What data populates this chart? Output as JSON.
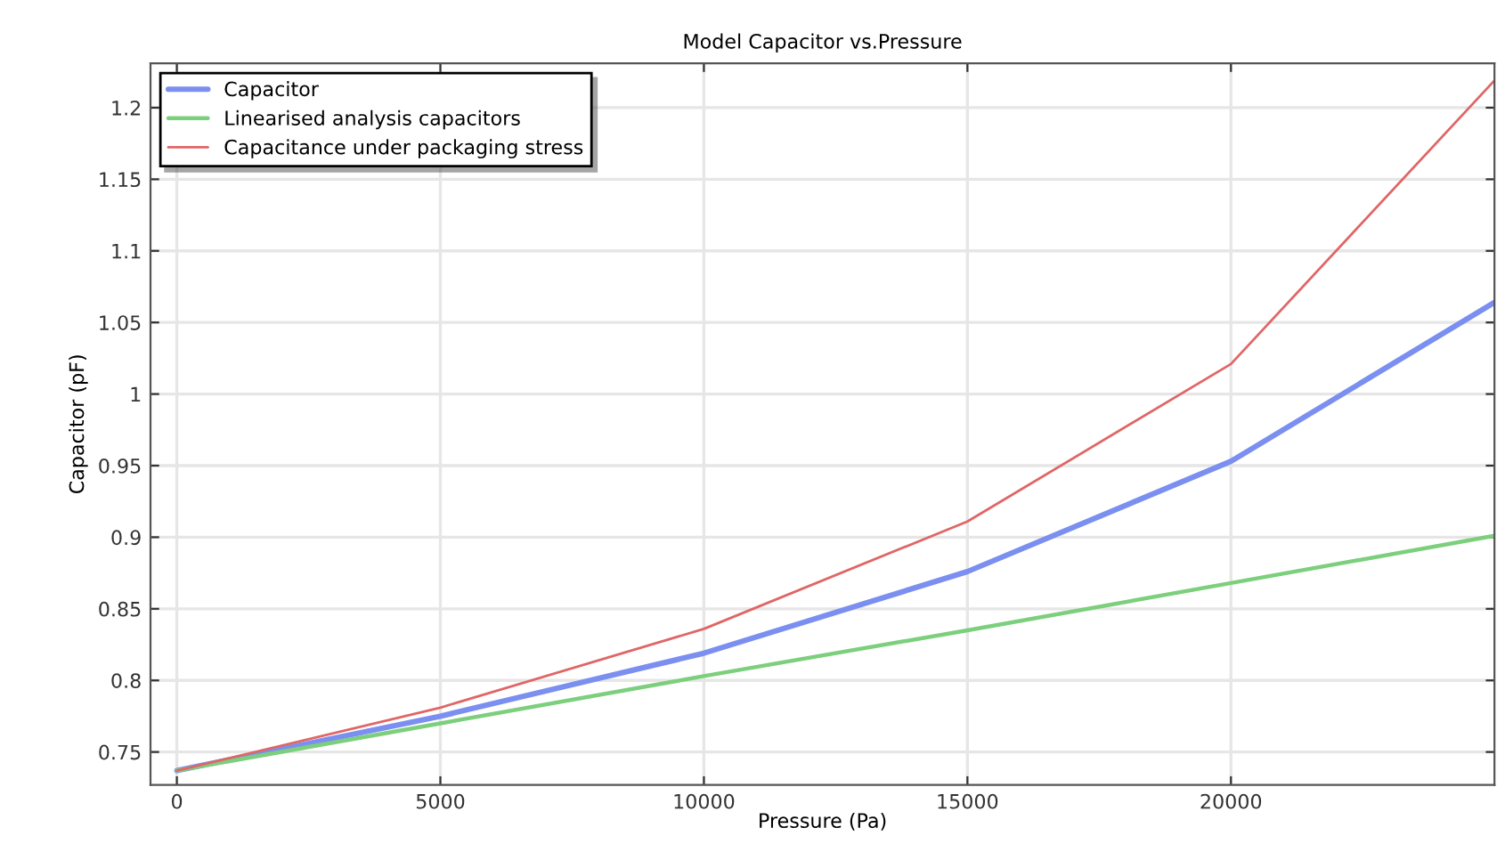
{
  "chart_data": {
    "type": "line",
    "title": "Model Capacitor vs.Pressure",
    "xlabel": "Pressure (Pa)",
    "ylabel": "Capacitor (pF)",
    "x": [
      0,
      5000,
      10000,
      15000,
      20000,
      25000
    ],
    "series": [
      {
        "name": "Capacitor",
        "color": "#7b8ff0",
        "values": [
          0.737,
          0.775,
          0.819,
          0.876,
          0.953,
          1.064
        ]
      },
      {
        "name": "Linearised analysis capacitors",
        "color": "#7ccf7c",
        "values": [
          0.737,
          0.77,
          0.803,
          0.835,
          0.868,
          0.901
        ]
      },
      {
        "name": "Capacitance under packaging stress",
        "color": "#e06666",
        "values": [
          0.737,
          0.781,
          0.836,
          0.911,
          1.021,
          1.219
        ]
      }
    ],
    "xlim": [
      -500,
      25000
    ],
    "ylim": [
      0.727,
      1.231
    ],
    "xticks": [
      0,
      5000,
      10000,
      15000,
      20000
    ],
    "yticks": [
      0.75,
      0.8,
      0.85,
      0.9,
      0.95,
      1,
      1.05,
      1.1,
      1.15,
      1.2
    ],
    "grid": true,
    "legend": "top left",
    "marker": "none",
    "line_style": "solid"
  }
}
